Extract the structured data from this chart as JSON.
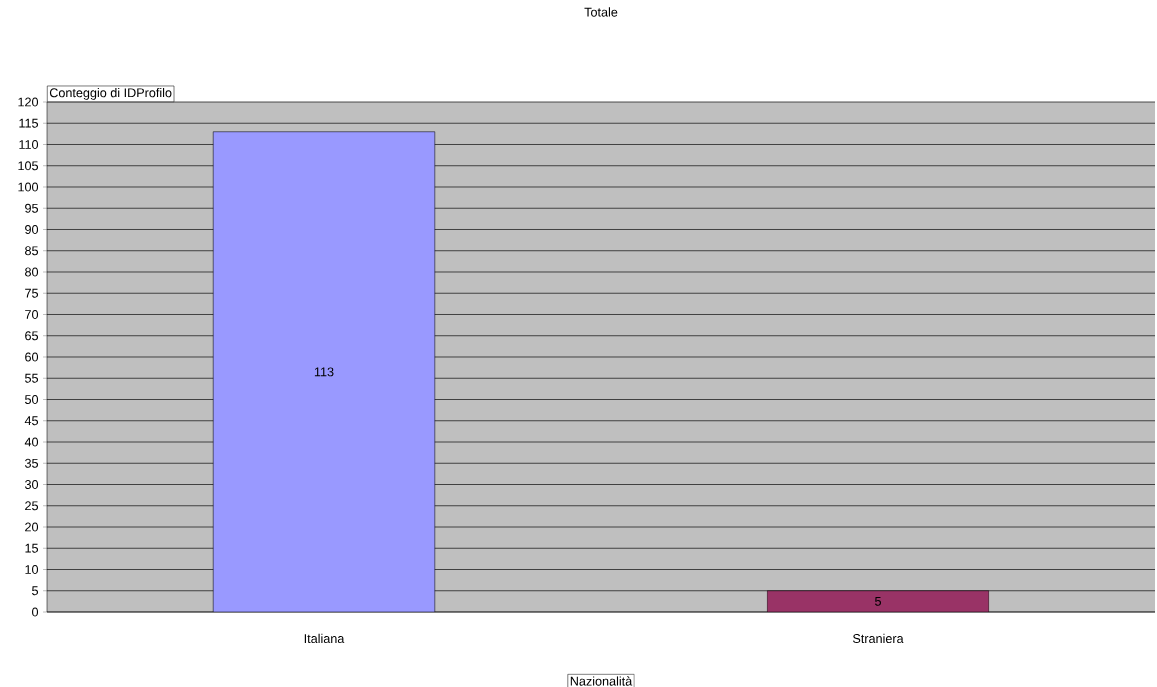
{
  "chart_data": {
    "type": "bar",
    "title": "Totale",
    "xlabel": "Nazionalità",
    "ylabel": "Conteggio di IDProfilo",
    "categories": [
      "Italiana",
      "Straniera"
    ],
    "values": [
      113,
      5
    ],
    "colors": [
      "#9999ff",
      "#993366"
    ],
    "ylim": [
      0,
      120
    ],
    "yticks": [
      0,
      5,
      10,
      15,
      20,
      25,
      30,
      35,
      40,
      45,
      50,
      55,
      60,
      65,
      70,
      75,
      80,
      85,
      90,
      95,
      100,
      105,
      110,
      115,
      120
    ],
    "grid": "y",
    "data_labels": true
  }
}
